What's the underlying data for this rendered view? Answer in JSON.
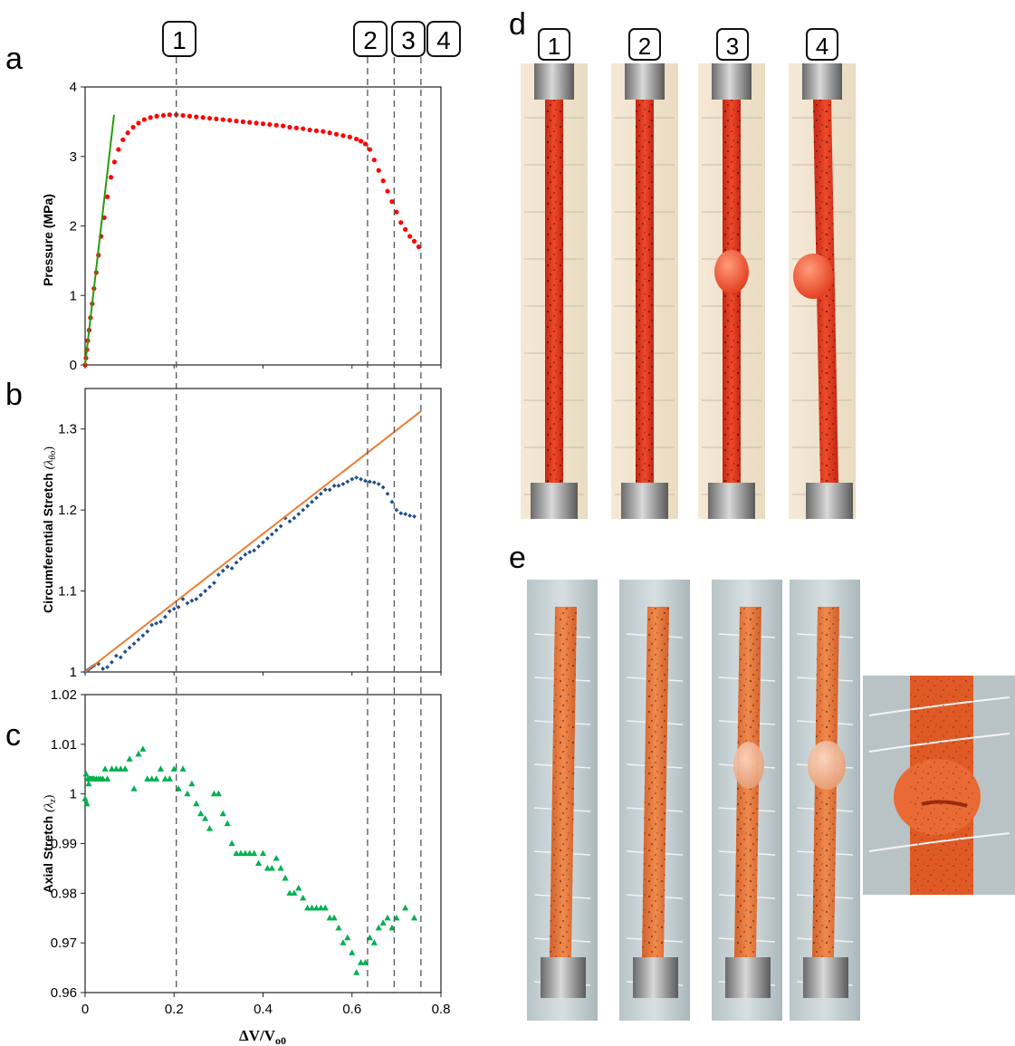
{
  "panel_labels": {
    "a": "a",
    "b": "b",
    "c": "c",
    "d": "d",
    "e": "e"
  },
  "stage_markers": [
    {
      "label": "1",
      "x": 0.205
    },
    {
      "label": "2",
      "x": 0.635
    },
    {
      "label": "3",
      "x": 0.695
    },
    {
      "label": "4",
      "x": 0.755
    }
  ],
  "photo_labels": [
    "1",
    "2",
    "3",
    "4"
  ],
  "shared_xlabel": "ΔV/V",
  "shared_xlabel_sub": "o0",
  "colors": {
    "pressure": "#ff0000",
    "fit_line": "#2a9a10",
    "circ": "#1f4e8c",
    "circ_line": "#ed7d31",
    "axial": "#00b050",
    "tube_d": "#e8361f",
    "tube_e": "#e87a3a"
  },
  "chart_data": [
    {
      "type": "scatter",
      "panel": "a",
      "ylabel": "Pressure (MPa)",
      "xlim": [
        0,
        0.8
      ],
      "ylim": [
        0,
        4
      ],
      "yticks": [
        "0",
        "1",
        "2",
        "3",
        "4"
      ],
      "series": [
        {
          "marker": "circle",
          "x": [
            0,
            0.002,
            0.004,
            0.006,
            0.009,
            0.012,
            0.016,
            0.02,
            0.025,
            0.03,
            0.036,
            0.043,
            0.05,
            0.058,
            0.066,
            0.075,
            0.085,
            0.096,
            0.108,
            0.12,
            0.133,
            0.147,
            0.161,
            0.176,
            0.19,
            0.205,
            0.22,
            0.235,
            0.25,
            0.265,
            0.28,
            0.295,
            0.31,
            0.325,
            0.34,
            0.355,
            0.37,
            0.385,
            0.4,
            0.415,
            0.43,
            0.445,
            0.46,
            0.475,
            0.49,
            0.505,
            0.52,
            0.535,
            0.55,
            0.565,
            0.58,
            0.595,
            0.61,
            0.62,
            0.63,
            0.64,
            0.65,
            0.66,
            0.67,
            0.68,
            0.69,
            0.7,
            0.71,
            0.72,
            0.73,
            0.74,
            0.75
          ],
          "y": [
            0,
            0.1,
            0.22,
            0.35,
            0.5,
            0.68,
            0.88,
            1.1,
            1.33,
            1.58,
            1.85,
            2.12,
            2.42,
            2.7,
            2.92,
            3.1,
            3.24,
            3.34,
            3.42,
            3.48,
            3.53,
            3.56,
            3.58,
            3.59,
            3.6,
            3.6,
            3.59,
            3.58,
            3.57,
            3.56,
            3.55,
            3.54,
            3.53,
            3.52,
            3.51,
            3.5,
            3.49,
            3.48,
            3.47,
            3.46,
            3.45,
            3.44,
            3.42,
            3.41,
            3.4,
            3.38,
            3.37,
            3.36,
            3.34,
            3.32,
            3.3,
            3.28,
            3.25,
            3.22,
            3.18,
            3.1,
            2.95,
            2.8,
            2.65,
            2.5,
            2.35,
            2.2,
            2.05,
            1.95,
            1.85,
            1.78,
            1.7
          ]
        },
        {
          "marker": "line",
          "x": [
            0,
            0.065
          ],
          "y": [
            0,
            3.6
          ]
        }
      ]
    },
    {
      "type": "scatter",
      "panel": "b",
      "ylabel": "Circumferential Stretch",
      "ylabel_symbol": "(λ",
      "ylabel_sub": "θo",
      "ylabel_close": ")",
      "xlim": [
        0,
        0.8
      ],
      "ylim": [
        1,
        1.35
      ],
      "yticks": [
        "1",
        "1.1",
        "1.2",
        "1.3"
      ],
      "series": [
        {
          "marker": "diamond",
          "x": [
            0,
            0.005,
            0.01,
            0.015,
            0.02,
            0.03,
            0.04,
            0.05,
            0.06,
            0.07,
            0.08,
            0.09,
            0.1,
            0.11,
            0.12,
            0.13,
            0.14,
            0.15,
            0.16,
            0.17,
            0.18,
            0.19,
            0.2,
            0.21,
            0.22,
            0.23,
            0.24,
            0.25,
            0.26,
            0.27,
            0.28,
            0.29,
            0.3,
            0.31,
            0.32,
            0.33,
            0.34,
            0.35,
            0.36,
            0.37,
            0.38,
            0.39,
            0.4,
            0.41,
            0.42,
            0.43,
            0.44,
            0.45,
            0.46,
            0.47,
            0.48,
            0.49,
            0.5,
            0.51,
            0.52,
            0.53,
            0.54,
            0.55,
            0.56,
            0.57,
            0.58,
            0.59,
            0.6,
            0.61,
            0.62,
            0.63,
            0.64,
            0.65,
            0.66,
            0.67,
            0.68,
            0.69,
            0.7,
            0.71,
            0.72,
            0.73,
            0.74
          ],
          "y": [
            1,
            1.002,
            1.004,
            1.006,
            1.008,
            1.01,
            1.004,
            1.006,
            1.012,
            1.02,
            1.018,
            1.025,
            1.03,
            1.035,
            1.04,
            1.045,
            1.05,
            1.058,
            1.06,
            1.062,
            1.068,
            1.075,
            1.078,
            1.08,
            1.09,
            1.085,
            1.088,
            1.09,
            1.095,
            1.1,
            1.105,
            1.11,
            1.12,
            1.125,
            1.13,
            1.128,
            1.135,
            1.14,
            1.145,
            1.148,
            1.15,
            1.155,
            1.16,
            1.165,
            1.17,
            1.175,
            1.18,
            1.19,
            1.186,
            1.19,
            1.195,
            1.2,
            1.205,
            1.21,
            1.215,
            1.22,
            1.225,
            1.225,
            1.23,
            1.23,
            1.232,
            1.235,
            1.238,
            1.24,
            1.238,
            1.236,
            1.235,
            1.234,
            1.232,
            1.228,
            1.22,
            1.21,
            1.2,
            1.196,
            1.195,
            1.193,
            1.192
          ]
        },
        {
          "marker": "line",
          "x": [
            0,
            0.755
          ],
          "y": [
            1,
            1.322
          ]
        }
      ]
    },
    {
      "type": "scatter",
      "panel": "c",
      "ylabel": "Axial Stretch",
      "ylabel_symbol": "(λ",
      "ylabel_sub": "z",
      "ylabel_close": ")",
      "xlim": [
        0,
        0.8
      ],
      "ylim": [
        0.96,
        1.02
      ],
      "yticks": [
        "0.96",
        "0.97",
        "0.98",
        "0.99",
        "1",
        "1.01",
        "1.02"
      ],
      "xticks": [
        "0",
        "0.2",
        "0.4",
        "0.6",
        "0.8"
      ],
      "series": [
        {
          "marker": "triangle",
          "x": [
            0,
            0.002,
            0.004,
            0.006,
            0.008,
            0.01,
            0.012,
            0.015,
            0.018,
            0.02,
            0.025,
            0.03,
            0.035,
            0.04,
            0.045,
            0.05,
            0.06,
            0.07,
            0.08,
            0.09,
            0.1,
            0.11,
            0.12,
            0.13,
            0.14,
            0.15,
            0.16,
            0.17,
            0.18,
            0.19,
            0.2,
            0.21,
            0.22,
            0.23,
            0.24,
            0.25,
            0.26,
            0.27,
            0.28,
            0.29,
            0.3,
            0.31,
            0.32,
            0.33,
            0.34,
            0.35,
            0.36,
            0.37,
            0.38,
            0.39,
            0.4,
            0.41,
            0.42,
            0.43,
            0.44,
            0.45,
            0.46,
            0.47,
            0.48,
            0.49,
            0.5,
            0.51,
            0.52,
            0.53,
            0.54,
            0.55,
            0.56,
            0.57,
            0.58,
            0.59,
            0.6,
            0.61,
            0.62,
            0.63,
            0.64,
            0.65,
            0.66,
            0.67,
            0.68,
            0.69,
            0.7,
            0.72,
            0.74
          ],
          "y": [
            0.999,
            1.004,
            0.998,
            1.003,
            1.002,
            1.003,
            1.003,
            1.003,
            1.003,
            1.003,
            1.003,
            1.003,
            1.003,
            1.003,
            1.005,
            1.003,
            1.005,
            1.005,
            1.005,
            1.005,
            1.007,
            1.001,
            1.008,
            1.009,
            1.003,
            1.003,
            1.003,
            1.005,
            1.003,
            1.003,
            1.005,
            1.001,
            1.005,
            1.0,
            1.002,
            0.998,
            0.996,
            0.995,
            0.993,
            1.0,
            1.0,
            0.996,
            0.994,
            0.99,
            0.988,
            0.988,
            0.988,
            0.988,
            0.988,
            0.986,
            0.988,
            0.985,
            0.985,
            0.987,
            0.985,
            0.983,
            0.98,
            0.98,
            0.981,
            0.979,
            0.977,
            0.977,
            0.977,
            0.977,
            0.977,
            0.975,
            0.975,
            0.973,
            0.97,
            0.971,
            0.968,
            0.964,
            0.966,
            0.966,
            0.971,
            0.97,
            0.973,
            0.974,
            0.975,
            0.973,
            0.975,
            0.977,
            0.975
          ]
        }
      ]
    }
  ]
}
